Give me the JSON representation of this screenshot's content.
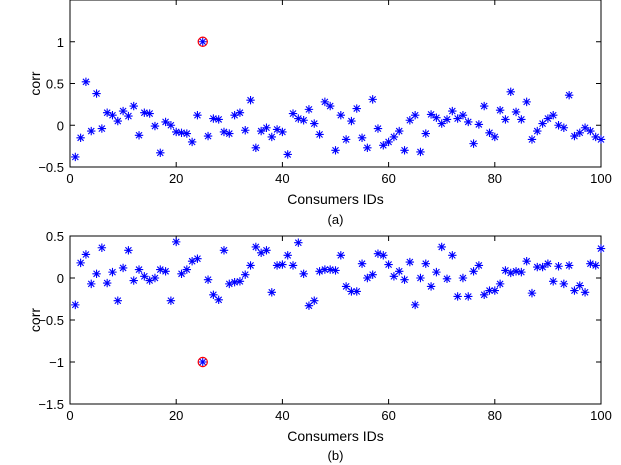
{
  "chart_data": [
    {
      "type": "scatter",
      "caption": "(a)",
      "xlabel": "Consumers IDs",
      "ylabel": "corr",
      "xlim": [
        0,
        100
      ],
      "ylim": [
        -0.5,
        1.5
      ],
      "xticks": [
        0,
        20,
        40,
        60,
        80,
        100
      ],
      "yticks": [
        -0.5,
        0,
        0.5,
        1
      ],
      "ytick_labels": [
        "−0.5",
        "0",
        "0.5",
        "1"
      ],
      "marker": "asterisk",
      "marker_color": "#0000ff",
      "highlight": {
        "x": 25,
        "y": 1,
        "ring_color": "#ff0000"
      },
      "x": [
        1,
        2,
        3,
        4,
        5,
        6,
        7,
        8,
        9,
        10,
        11,
        12,
        13,
        14,
        15,
        16,
        17,
        18,
        19,
        20,
        21,
        22,
        23,
        24,
        25,
        26,
        27,
        28,
        29,
        30,
        31,
        32,
        33,
        34,
        35,
        36,
        37,
        38,
        39,
        40,
        41,
        42,
        43,
        44,
        45,
        46,
        47,
        48,
        49,
        50,
        51,
        52,
        53,
        54,
        55,
        56,
        57,
        58,
        59,
        60,
        61,
        62,
        63,
        64,
        65,
        66,
        67,
        68,
        69,
        70,
        71,
        72,
        73,
        74,
        75,
        76,
        77,
        78,
        79,
        80,
        81,
        82,
        83,
        84,
        85,
        86,
        87,
        88,
        89,
        90,
        91,
        92,
        93,
        94,
        95,
        96,
        97,
        98,
        99,
        100
      ],
      "y": [
        -0.38,
        -0.15,
        0.52,
        -0.07,
        0.38,
        -0.04,
        0.15,
        0.12,
        0.05,
        0.17,
        0.11,
        0.23,
        -0.12,
        0.15,
        0.14,
        -0.01,
        -0.33,
        0.04,
        0.0,
        -0.08,
        -0.09,
        -0.1,
        -0.2,
        0.12,
        1.0,
        -0.13,
        0.08,
        0.07,
        -0.08,
        -0.1,
        0.12,
        0.15,
        -0.06,
        0.3,
        -0.27,
        -0.07,
        -0.03,
        -0.14,
        -0.05,
        -0.08,
        -0.35,
        0.14,
        0.08,
        0.06,
        0.19,
        0.02,
        -0.11,
        0.28,
        0.23,
        -0.3,
        0.12,
        -0.17,
        0.05,
        0.2,
        -0.15,
        -0.27,
        0.31,
        -0.04,
        -0.24,
        -0.2,
        -0.14,
        -0.07,
        -0.3,
        0.06,
        0.12,
        -0.32,
        -0.1,
        0.13,
        0.09,
        0.02,
        0.07,
        0.17,
        0.08,
        0.12,
        0.04,
        -0.22,
        0.01,
        0.23,
        -0.09,
        -0.14,
        0.18,
        0.07,
        0.4,
        0.16,
        0.07,
        0.28,
        -0.17,
        -0.07,
        0.02,
        0.08,
        0.12,
        0.0,
        -0.03,
        0.36,
        -0.13,
        -0.09,
        -0.03,
        -0.07,
        -0.14,
        -0.17
      ]
    },
    {
      "type": "scatter",
      "caption": "(b)",
      "xlabel": "Consumers IDs",
      "ylabel": "corr",
      "xlim": [
        0,
        100
      ],
      "ylim": [
        -1.5,
        0.5
      ],
      "xticks": [
        0,
        20,
        40,
        60,
        80,
        100
      ],
      "yticks": [
        -1.5,
        -1,
        -0.5,
        0,
        0.5
      ],
      "ytick_labels": [
        "−1.5",
        "−1",
        "−0.5",
        "0",
        "0.5"
      ],
      "marker": "asterisk",
      "marker_color": "#0000ff",
      "highlight": {
        "x": 25,
        "y": -1,
        "ring_color": "#ff0000"
      },
      "x": [
        1,
        2,
        3,
        4,
        5,
        6,
        7,
        8,
        9,
        10,
        11,
        12,
        13,
        14,
        15,
        16,
        17,
        18,
        19,
        20,
        21,
        22,
        23,
        24,
        25,
        26,
        27,
        28,
        29,
        30,
        31,
        32,
        33,
        34,
        35,
        36,
        37,
        38,
        39,
        40,
        41,
        42,
        43,
        44,
        45,
        46,
        47,
        48,
        49,
        50,
        51,
        52,
        53,
        54,
        55,
        56,
        57,
        58,
        59,
        60,
        61,
        62,
        63,
        64,
        65,
        66,
        67,
        68,
        69,
        70,
        71,
        72,
        73,
        74,
        75,
        76,
        77,
        78,
        79,
        80,
        81,
        82,
        83,
        84,
        85,
        86,
        87,
        88,
        89,
        90,
        91,
        92,
        93,
        94,
        95,
        96,
        97,
        98,
        99,
        100
      ],
      "y": [
        -0.32,
        0.18,
        0.28,
        -0.07,
        0.05,
        0.36,
        -0.06,
        0.07,
        -0.27,
        0.12,
        0.33,
        -0.03,
        0.1,
        0.02,
        -0.03,
        0.0,
        0.1,
        0.08,
        -0.27,
        0.43,
        0.05,
        0.1,
        0.2,
        0.23,
        -1.0,
        -0.02,
        -0.2,
        -0.26,
        0.33,
        -0.07,
        -0.05,
        -0.04,
        0.04,
        0.15,
        0.37,
        0.3,
        0.33,
        -0.17,
        0.15,
        0.16,
        0.27,
        0.15,
        0.42,
        0.05,
        -0.33,
        -0.27,
        0.08,
        0.1,
        0.1,
        0.09,
        0.27,
        -0.1,
        -0.16,
        -0.16,
        0.17,
        0.0,
        0.04,
        0.29,
        0.27,
        0.16,
        0.02,
        0.08,
        -0.02,
        0.19,
        -0.32,
        0.0,
        0.17,
        -0.1,
        0.07,
        0.37,
        -0.01,
        0.27,
        -0.22,
        0.0,
        -0.22,
        0.08,
        0.15,
        -0.2,
        -0.15,
        -0.15,
        -0.07,
        0.09,
        0.06,
        0.08,
        0.07,
        0.2,
        -0.18,
        0.13,
        0.13,
        0.17,
        -0.04,
        0.14,
        -0.07,
        0.15,
        -0.15,
        -0.09,
        -0.17,
        0.17,
        0.15,
        0.35
      ]
    }
  ]
}
